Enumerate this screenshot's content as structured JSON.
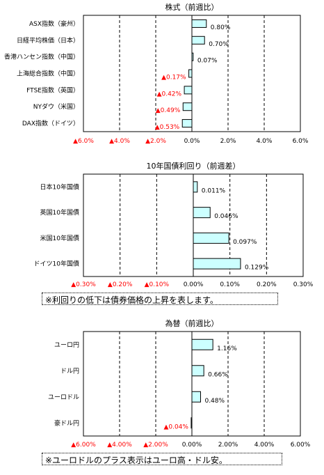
{
  "colors": {
    "bar_fill": "#ccffff",
    "bar_stroke": "#000000",
    "negative_text": "#ff0000",
    "positive_text": "#000000",
    "grid": "#000000"
  },
  "chart_data": [
    {
      "type": "bar",
      "orientation": "horizontal",
      "title": "株式（前週比）",
      "categories": [
        "ASX指数（豪州）",
        "日経平均株価（日本）",
        "香港ハンセン指数（中国）",
        "上海総合指数（中国）",
        "FTSE指数（英国）",
        "NYダウ（米国）",
        "DAX指数（ドイツ）"
      ],
      "values": [
        0.8,
        0.7,
        0.07,
        -0.17,
        -0.42,
        -0.49,
        -0.53
      ],
      "value_labels": [
        "0.80%",
        "0.70%",
        "0.07%",
        "▲0.17%",
        "▲0.42%",
        "▲0.49%",
        "▲0.53%"
      ],
      "xlim": [
        -6,
        6
      ],
      "ticks": [
        -6,
        -4,
        -2,
        0,
        2,
        4,
        6
      ],
      "tick_labels": [
        "▲6.0%",
        "▲4.0%",
        "▲2.0%",
        "0.0%",
        "2.0%",
        "4.0%",
        "6.0%"
      ],
      "grid": "vertical dashed"
    },
    {
      "type": "bar",
      "orientation": "horizontal",
      "title": "10年国債利回り（前週差）",
      "categories": [
        "日本10年国債",
        "英国10年国債",
        "米国10年国債",
        "ドイツ10年国債"
      ],
      "values": [
        0.011,
        0.046,
        0.097,
        0.129
      ],
      "value_labels": [
        "0.011%",
        "0.046%",
        "0.097%",
        "0.129%"
      ],
      "xlim": [
        -0.3,
        0.3
      ],
      "ticks": [
        -0.3,
        -0.2,
        -0.1,
        0,
        0.1,
        0.2,
        0.3
      ],
      "tick_labels": [
        "▲0.30%",
        "▲0.20%",
        "▲0.10%",
        "0.00%",
        "0.10%",
        "0.20%",
        "0.30%"
      ],
      "grid": "vertical dashed"
    },
    {
      "type": "bar",
      "orientation": "horizontal",
      "title": "為替（前週比）",
      "categories": [
        "ユーロ円",
        "ドル円",
        "ユーロドル",
        "豪ドル円"
      ],
      "values": [
        1.16,
        0.66,
        0.48,
        -0.04
      ],
      "value_labels": [
        "1.16%",
        "0.66%",
        "0.48%",
        "▲0.04%"
      ],
      "xlim": [
        -6,
        6
      ],
      "ticks": [
        -6,
        -4,
        -2,
        0,
        2,
        4,
        6
      ],
      "tick_labels": [
        "▲6.00%",
        "▲4.00%",
        "▲2.00%",
        "0.00%",
        "2.00%",
        "4.00%",
        "6.00%"
      ],
      "grid": "vertical dashed"
    }
  ],
  "notes": {
    "bond": "※利回りの低下は債券価格の上昇を表します。",
    "fx": "※ユーロドルのプラス表示はユーロ高・ドル安。"
  }
}
